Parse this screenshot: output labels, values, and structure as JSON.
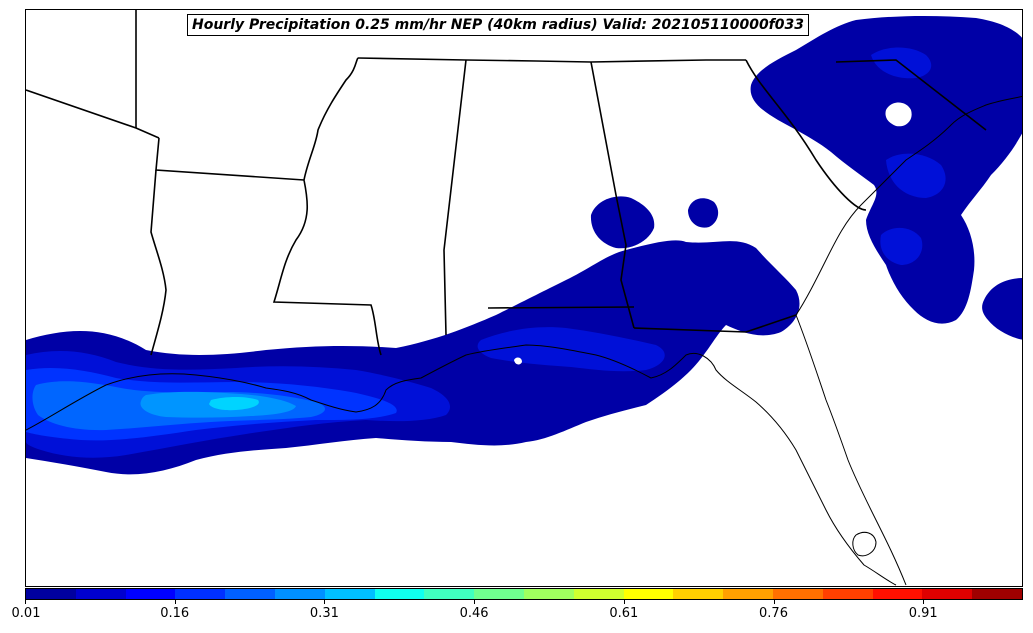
{
  "title": "Hourly Precipitation 0.25 mm/hr NEP (40km radius) Valid: 202105110000f033",
  "colorbar": {
    "colors": [
      "#00009f",
      "#0000cf",
      "#0000ff",
      "#0030ff",
      "#0060ff",
      "#0090ff",
      "#00c0ff",
      "#10ffef",
      "#40ffbf",
      "#70ff8f",
      "#a0ff5f",
      "#d0ff2f",
      "#ffff00",
      "#ffd000",
      "#ffa000",
      "#ff7000",
      "#ff4000",
      "#ff1000",
      "#df0000",
      "#9f0000"
    ],
    "tick_labels": [
      "0.01",
      "0.16",
      "0.31",
      "0.46",
      "0.61",
      "0.76",
      "0.91"
    ],
    "tick_values": [
      0.01,
      0.16,
      0.31,
      0.46,
      0.61,
      0.76,
      0.91
    ],
    "range": [
      0.01,
      1.01
    ]
  },
  "map": {
    "land_color": "#ffffff",
    "border_color": "#000000",
    "precip_colors": {
      "level1": "#0000a6",
      "level2": "#0010d8",
      "level3": "#0033ff",
      "level4": "#0066ff",
      "level5": "#0095ff",
      "level6": "#00d4ff"
    }
  }
}
